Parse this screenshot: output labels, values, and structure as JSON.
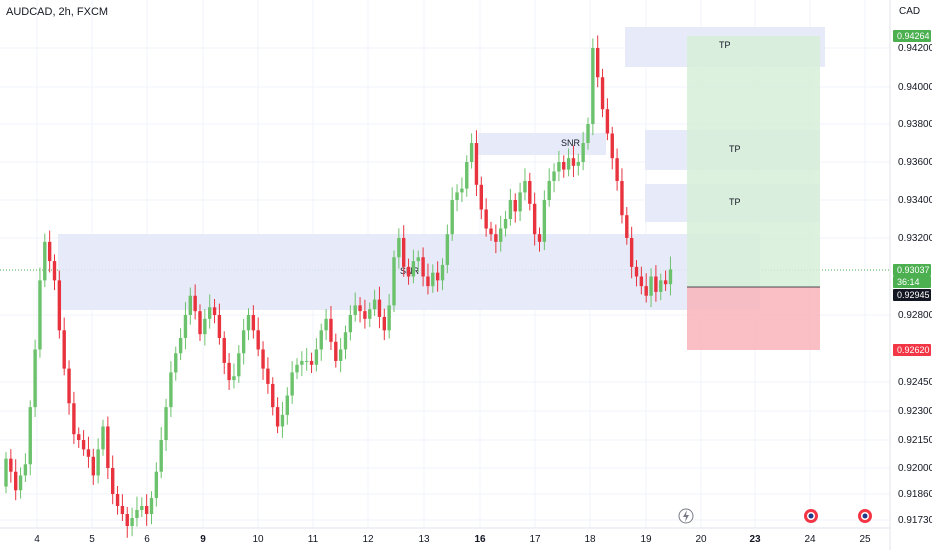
{
  "header": {
    "symbol": "AUDCAD, 2h, FXCM",
    "currency": "CAD"
  },
  "colors": {
    "up": "#26a69a",
    "upBody": "#6cc26c",
    "down": "#ef5350",
    "downBody": "#e8323d",
    "zone": "#e3e8f8",
    "tp": "#d7efd9",
    "sl": "#f8b8be",
    "greenBadge": "#4caf50",
    "redBadge": "#f23645",
    "darkBadge": "#131722"
  },
  "chart_data": {
    "type": "candlestick",
    "y_ticks": [
      "0.94200",
      "0.94000",
      "0.93800",
      "0.93600",
      "0.93400",
      "0.93200",
      "0.92800",
      "0.92450",
      "0.92300",
      "0.92150",
      "0.92000",
      "0.91860",
      "0.91730"
    ],
    "x_ticks": [
      {
        "label": "4",
        "bold": false
      },
      {
        "label": "5",
        "bold": false
      },
      {
        "label": "6",
        "bold": false
      },
      {
        "label": "9",
        "bold": true
      },
      {
        "label": "10",
        "bold": false
      },
      {
        "label": "11",
        "bold": false
      },
      {
        "label": "12",
        "bold": false
      },
      {
        "label": "13",
        "bold": false
      },
      {
        "label": "16",
        "bold": true
      },
      {
        "label": "17",
        "bold": false
      },
      {
        "label": "18",
        "bold": false
      },
      {
        "label": "19",
        "bold": false
      },
      {
        "label": "20",
        "bold": false
      },
      {
        "label": "23",
        "bold": true
      },
      {
        "label": "24",
        "bold": false
      },
      {
        "label": "25",
        "bold": false
      }
    ],
    "price_badges": [
      {
        "label": "0.94264",
        "kind": "green"
      },
      {
        "label": "0.93037",
        "kind": "green"
      },
      {
        "label": "36:14",
        "kind": "green"
      },
      {
        "label": "0.92945",
        "kind": "dark"
      },
      {
        "label": "0.92620",
        "kind": "red"
      }
    ],
    "zones": [
      {
        "label": "SNR"
      },
      {
        "label": "SNR"
      }
    ],
    "take_profit_labels": [
      "TP",
      "TP",
      "TP"
    ],
    "closes": [
      0.9205,
      0.9198,
      0.9188,
      0.9196,
      0.9202,
      0.9232,
      0.9262,
      0.9298,
      0.9318,
      0.9308,
      0.9298,
      0.9272,
      0.9252,
      0.9234,
      0.9218,
      0.9215,
      0.921,
      0.9206,
      0.9196,
      0.921,
      0.9222,
      0.92,
      0.9186,
      0.918,
      0.9176,
      0.917,
      0.9174,
      0.9178,
      0.918,
      0.9176,
      0.9184,
      0.9198,
      0.9215,
      0.9232,
      0.925,
      0.926,
      0.9268,
      0.928,
      0.929,
      0.9282,
      0.927,
      0.9278,
      0.9284,
      0.928,
      0.9268,
      0.9255,
      0.9246,
      0.9248,
      0.926,
      0.9272,
      0.928,
      0.9272,
      0.9262,
      0.9252,
      0.9244,
      0.9232,
      0.9222,
      0.9228,
      0.9238,
      0.925,
      0.9254,
      0.9256,
      0.9256,
      0.9254,
      0.9262,
      0.9272,
      0.9278,
      0.9266,
      0.9256,
      0.9262,
      0.9271,
      0.928,
      0.9285,
      0.9282,
      0.9278,
      0.9283,
      0.9288,
      0.9279,
      0.9272,
      0.9285,
      0.931,
      0.932,
      0.9305,
      0.93,
      0.9308,
      0.931,
      0.93,
      0.9295,
      0.9302,
      0.9298,
      0.9306,
      0.9322,
      0.934,
      0.9344,
      0.9346,
      0.936,
      0.937,
      0.9348,
      0.9335,
      0.9325,
      0.9322,
      0.9318,
      0.9325,
      0.933,
      0.934,
      0.9334,
      0.9344,
      0.935,
      0.9338,
      0.9322,
      0.9318,
      0.934,
      0.935,
      0.9355,
      0.936,
      0.9356,
      0.9362,
      0.9358,
      0.936,
      0.937,
      0.938,
      0.942,
      0.9405,
      0.9388,
      0.9375,
      0.9362,
      0.935,
      0.9332,
      0.932,
      0.9305,
      0.93,
      0.9295,
      0.929,
      0.93,
      0.9292,
      0.9298,
      0.9296,
      0.93037
    ]
  }
}
